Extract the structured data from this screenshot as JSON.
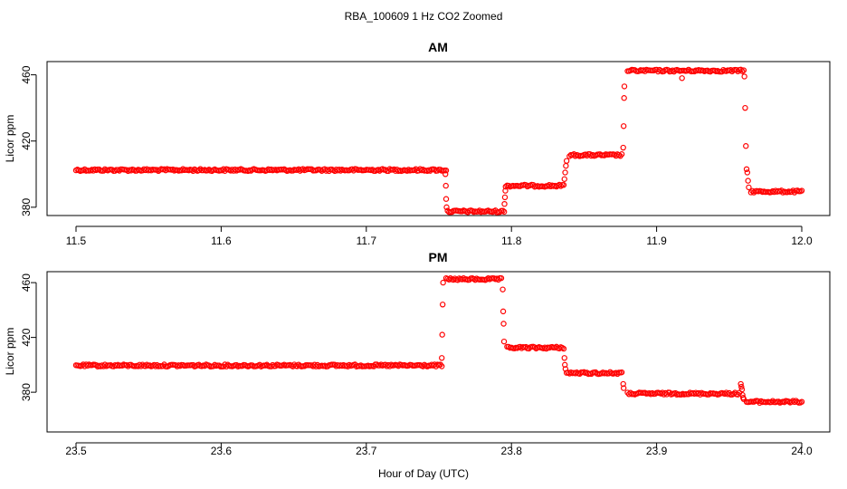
{
  "figure": {
    "title": "RBA_100609  1 Hz CO2 Zoomed",
    "xlabel": "Hour of Day (UTC)",
    "point_color": "#ff0000"
  },
  "chart_data": [
    {
      "type": "scatter",
      "title": "AM",
      "ylabel": "Licor ppm",
      "xlim": [
        11.5,
        12.0
      ],
      "ylim": [
        375,
        468
      ],
      "xticks": [
        "11.5",
        "11.6",
        "11.7",
        "11.8",
        "11.9",
        "12.0"
      ],
      "yticks": [
        "380",
        "420",
        "460"
      ],
      "grid": false,
      "segments": [
        {
          "x": [
            11.5,
            11.755
          ],
          "y": 402.5
        },
        {
          "x": [
            11.756,
            11.795
          ],
          "y": 377.5
        },
        {
          "x": [
            11.796,
            11.836
          ],
          "y": 393
        },
        {
          "x": [
            11.84,
            11.876
          ],
          "y": 411.5
        },
        {
          "x": [
            11.88,
            11.96
          ],
          "y": 462.5
        },
        {
          "x": [
            11.965,
            12.0
          ],
          "y": 389.5
        }
      ],
      "transitions": [
        {
          "x": 11.7545,
          "y": 400
        },
        {
          "x": 11.7548,
          "y": 393
        },
        {
          "x": 11.755,
          "y": 385
        },
        {
          "x": 11.7553,
          "y": 380
        },
        {
          "x": 11.7952,
          "y": 382
        },
        {
          "x": 11.7955,
          "y": 386
        },
        {
          "x": 11.7958,
          "y": 390
        },
        {
          "x": 11.8365,
          "y": 397
        },
        {
          "x": 11.837,
          "y": 401
        },
        {
          "x": 11.8375,
          "y": 405
        },
        {
          "x": 11.838,
          "y": 408
        },
        {
          "x": 11.877,
          "y": 416
        },
        {
          "x": 11.8773,
          "y": 429
        },
        {
          "x": 11.8776,
          "y": 446
        },
        {
          "x": 11.8778,
          "y": 453
        },
        {
          "x": 11.9175,
          "y": 458
        },
        {
          "x": 11.9605,
          "y": 459
        },
        {
          "x": 11.961,
          "y": 440
        },
        {
          "x": 11.9615,
          "y": 417
        },
        {
          "x": 11.962,
          "y": 403
        },
        {
          "x": 11.9625,
          "y": 401
        },
        {
          "x": 11.963,
          "y": 396
        },
        {
          "x": 11.9635,
          "y": 392
        }
      ]
    },
    {
      "type": "scatter",
      "title": "PM",
      "ylabel": "Licor ppm",
      "xlim": [
        23.5,
        24.0
      ],
      "ylim": [
        351,
        468
      ],
      "xticks": [
        "23.5",
        "23.6",
        "23.7",
        "23.8",
        "23.9",
        "24.0"
      ],
      "yticks": [
        "380",
        "420",
        "460"
      ],
      "grid": false,
      "segments": [
        {
          "x": [
            23.5,
            23.752
          ],
          "y": 399.5
        },
        {
          "x": [
            23.755,
            23.793
          ],
          "y": 462.5
        },
        {
          "x": [
            23.797,
            23.836
          ],
          "y": 412.5
        },
        {
          "x": [
            23.838,
            23.876
          ],
          "y": 394
        },
        {
          "x": [
            23.88,
            23.957
          ],
          "y": 379
        },
        {
          "x": [
            23.962,
            24.0
          ],
          "y": 373
        }
      ],
      "transitions": [
        {
          "x": 23.752,
          "y": 405
        },
        {
          "x": 23.7523,
          "y": 422
        },
        {
          "x": 23.7526,
          "y": 444
        },
        {
          "x": 23.7529,
          "y": 460
        },
        {
          "x": 23.794,
          "y": 455
        },
        {
          "x": 23.7943,
          "y": 439
        },
        {
          "x": 23.7946,
          "y": 430
        },
        {
          "x": 23.7949,
          "y": 417
        },
        {
          "x": 23.8365,
          "y": 405
        },
        {
          "x": 23.8368,
          "y": 400
        },
        {
          "x": 23.8372,
          "y": 397
        },
        {
          "x": 23.877,
          "y": 386
        },
        {
          "x": 23.8773,
          "y": 383
        },
        {
          "x": 23.958,
          "y": 386
        },
        {
          "x": 23.9584,
          "y": 384
        },
        {
          "x": 23.9588,
          "y": 382
        },
        {
          "x": 23.9592,
          "y": 378
        },
        {
          "x": 23.9596,
          "y": 376
        },
        {
          "x": 23.96,
          "y": 375
        }
      ]
    }
  ]
}
